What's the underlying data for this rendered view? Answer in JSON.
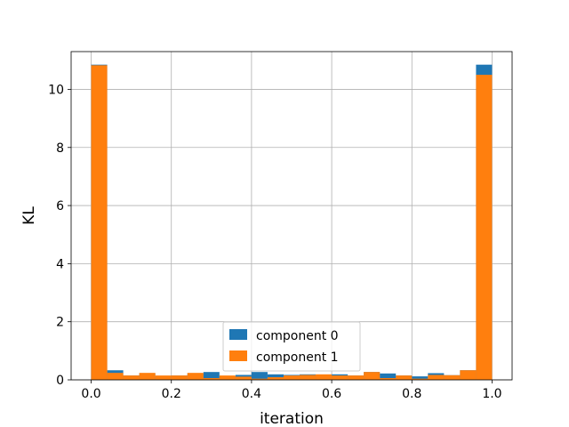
{
  "chart_data": {
    "type": "bar",
    "title": "",
    "xlabel": "iteration",
    "ylabel": "KL",
    "xlim": [
      -0.05,
      1.05
    ],
    "ylim": [
      0,
      11.3
    ],
    "xticks": [
      0.0,
      0.2,
      0.4,
      0.6,
      0.8,
      1.0
    ],
    "xtick_labels": [
      "0.0",
      "0.2",
      "0.4",
      "0.6",
      "0.8",
      "1.0"
    ],
    "yticks": [
      0,
      2,
      4,
      6,
      8,
      10
    ],
    "ytick_labels": [
      "0",
      "2",
      "4",
      "6",
      "8",
      "10"
    ],
    "grid": true,
    "legend_position": "bottom-center",
    "bin_edges": [
      0.0,
      0.04,
      0.08,
      0.12,
      0.16,
      0.2,
      0.24,
      0.28,
      0.32,
      0.36,
      0.4,
      0.44,
      0.48,
      0.52,
      0.56,
      0.6,
      0.64,
      0.68,
      0.72,
      0.76,
      0.8,
      0.84,
      0.88,
      0.92,
      0.96,
      1.0
    ],
    "series": [
      {
        "name": "component 0",
        "color": "#1f77b4",
        "values": [
          10.85,
          0.33,
          0.15,
          0.22,
          0.12,
          0.15,
          0.22,
          0.27,
          0.12,
          0.17,
          0.27,
          0.19,
          0.17,
          0.19,
          0.15,
          0.19,
          0.15,
          0.27,
          0.22,
          0.15,
          0.12,
          0.23,
          0.16,
          0.33,
          10.85
        ]
      },
      {
        "name": "component 1",
        "color": "#ff7f0e",
        "values": [
          10.83,
          0.24,
          0.15,
          0.24,
          0.15,
          0.15,
          0.24,
          0.06,
          0.15,
          0.11,
          0.04,
          0.09,
          0.15,
          0.17,
          0.19,
          0.15,
          0.15,
          0.27,
          0.06,
          0.15,
          0.04,
          0.17,
          0.16,
          0.33,
          10.5
        ]
      }
    ]
  }
}
